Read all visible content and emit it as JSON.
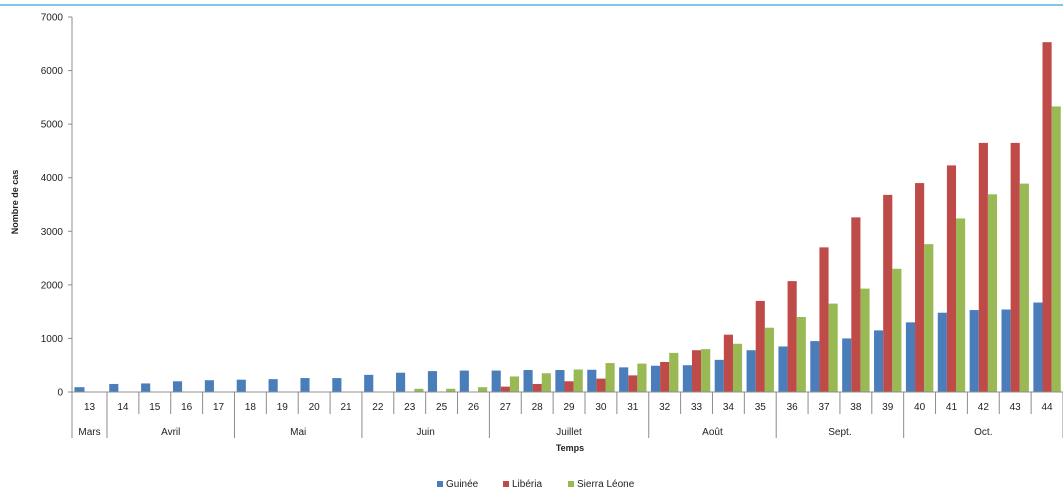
{
  "chart_data": {
    "type": "bar",
    "title": "",
    "xlabel": "Temps",
    "ylabel": "Nombre de cas",
    "ylim": [
      0,
      7000
    ],
    "yticks": [
      "0",
      "1000",
      "2000",
      "3000",
      "4000",
      "5000",
      "6000",
      "7000"
    ],
    "grid": false,
    "legend_position": "bottom",
    "categories": [
      "13",
      "14",
      "15",
      "16",
      "17",
      "18",
      "19",
      "20",
      "21",
      "22",
      "23",
      "25",
      "26",
      "27",
      "28",
      "29",
      "30",
      "31",
      "32",
      "33",
      "34",
      "35",
      "36",
      "37",
      "38",
      "39",
      "40",
      "41",
      "42",
      "43",
      "44"
    ],
    "months": [
      {
        "label": "Mars",
        "weeks": 1
      },
      {
        "label": "Avril",
        "weeks": 4
      },
      {
        "label": "Mai",
        "weeks": 4
      },
      {
        "label": "Juin",
        "weeks": 4
      },
      {
        "label": "Juillet",
        "weeks": 5
      },
      {
        "label": "Août",
        "weeks": 4
      },
      {
        "label": "Sept.",
        "weeks": 4
      },
      {
        "label": "Oct.",
        "weeks": 5
      }
    ],
    "series": [
      {
        "name": "Guinée",
        "color": "#4a7ebb",
        "values": [
          90,
          150,
          160,
          200,
          220,
          230,
          240,
          260,
          260,
          320,
          360,
          390,
          400,
          400,
          410,
          410,
          415,
          460,
          490,
          500,
          600,
          780,
          850,
          950,
          1000,
          1150,
          1300,
          1480,
          1530,
          1540,
          1670
        ]
      },
      {
        "name": "Libéria",
        "color": "#be4b48",
        "values": [
          0,
          0,
          0,
          0,
          0,
          0,
          0,
          0,
          0,
          0,
          0,
          0,
          0,
          100,
          150,
          200,
          250,
          310,
          560,
          780,
          1070,
          1700,
          2070,
          2700,
          3260,
          3680,
          3900,
          4230,
          4650,
          4650,
          6530
        ]
      },
      {
        "name": "Sierra Léone",
        "color": "#98b954",
        "values": [
          0,
          0,
          0,
          0,
          0,
          0,
          0,
          0,
          0,
          0,
          60,
          60,
          90,
          290,
          350,
          420,
          540,
          530,
          730,
          800,
          900,
          1200,
          1400,
          1650,
          1930,
          2300,
          2760,
          3240,
          3690,
          3890,
          5330
        ]
      }
    ]
  }
}
